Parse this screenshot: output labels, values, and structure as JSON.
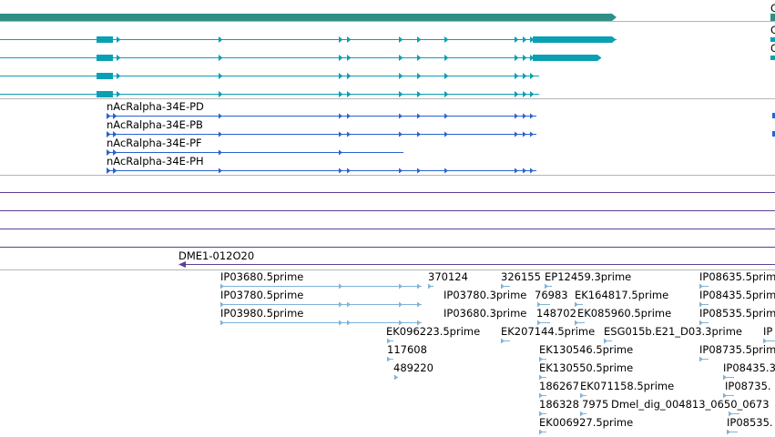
{
  "colors": {
    "gene_track": "#2f8f86",
    "transcript_teal": "#0aa0b4",
    "transcript_blue": "#2a62cf",
    "alignment_purple": "#5b3f95",
    "est_light_blue": "#7fb3d8",
    "track_separator": "#b5b5b5"
  },
  "icons": {
    "strand_arrow": "arrow-icon"
  },
  "edge_labels": [
    "C",
    "C",
    "C"
  ],
  "transcripts_labeled": [
    {
      "label": "nAcRalpha-34E-PD"
    },
    {
      "label": "nAcRalpha-34E-PB"
    },
    {
      "label": "nAcRalpha-34E-PF"
    },
    {
      "label": "nAcRalpha-34E-PH"
    }
  ],
  "alignment": {
    "label": "DME1-012O20"
  },
  "est_labels": [
    "IP03680.5prime",
    "370124",
    "326155",
    "EP12459.3prime",
    "IP08635.5prime",
    "IP03780.5prime",
    "IP03780.3prime",
    "76983",
    "EK164817.5prime",
    "IP08435.5prime",
    "IP03980.5prime",
    "IP03680.3prime",
    "148702",
    "EK085960.5prime",
    "IP08535.5prime",
    "EK096223.5prime",
    "EK207144.5prime",
    "ESG015b.E21_D03.3prime",
    "IP",
    "117608",
    "EK130546.5prime",
    "IP08735.5prime",
    "489220",
    "EK130550.5prime",
    "IP08435.3",
    "186267",
    "EK071158.5prime",
    "IP08735.",
    "186328",
    "7975",
    "Dmel_dig_004813_0650_0673",
    "EK006927.5prime",
    "IP08535."
  ]
}
